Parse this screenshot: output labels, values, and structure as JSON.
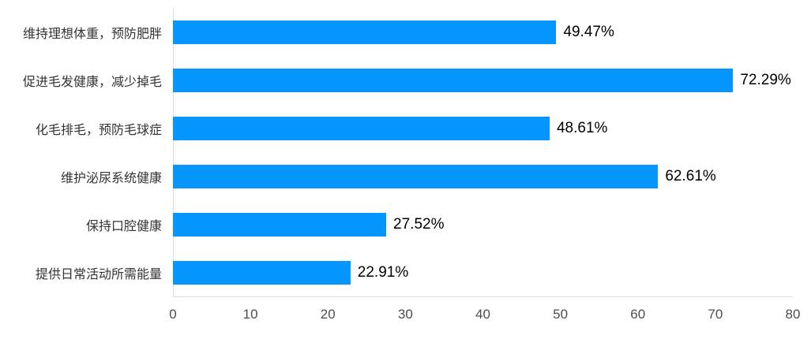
{
  "chart_data": {
    "type": "bar",
    "orientation": "horizontal",
    "title": "",
    "xlabel": "",
    "ylabel": "",
    "categories": [
      "维持理想体重，预防肥胖",
      "促进毛发健康，减少掉毛",
      "化毛排毛，预防毛球症",
      "维护泌尿系统健康",
      "保持口腔健康",
      "提供日常活动所需能量"
    ],
    "values": [
      49.47,
      72.29,
      48.61,
      62.61,
      27.52,
      22.91
    ],
    "value_labels": [
      "49.47%",
      "72.29%",
      "48.61%",
      "62.61%",
      "27.52%",
      "22.91%"
    ],
    "xlim": [
      0,
      80
    ],
    "x_ticks": [
      "0",
      "10",
      "20",
      "30",
      "40",
      "50",
      "60",
      "70",
      "80"
    ],
    "grid": false,
    "legend": false,
    "colors": {
      "bar": "#0696ff",
      "axis_line": "#d9dee6",
      "category_label": "#333333",
      "value_label": "#000000",
      "tick_label": "#4d4d4d",
      "background": "#ffffff"
    }
  }
}
